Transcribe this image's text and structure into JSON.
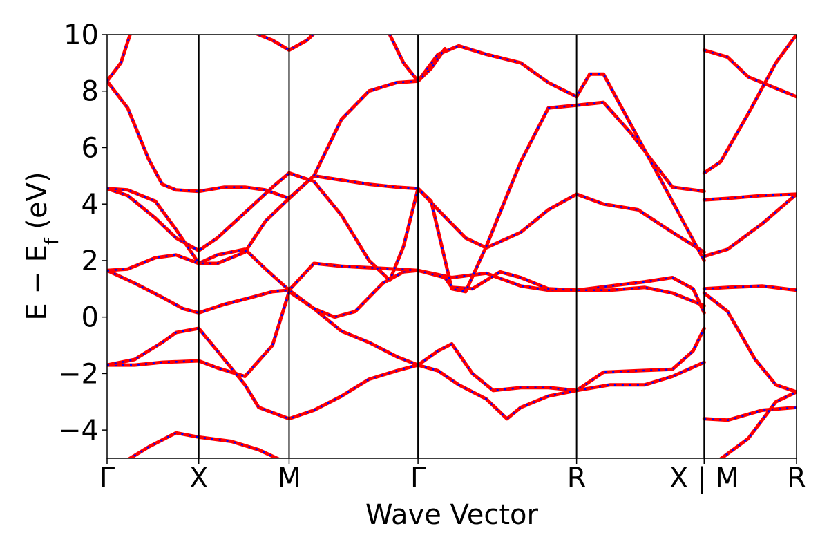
{
  "chart_data": {
    "type": "line",
    "title": "",
    "xlabel": "Wave Vector",
    "ylabel": "E − E_f (eV)",
    "ylim": [
      -5,
      10
    ],
    "yticks": [
      -4,
      -2,
      0,
      2,
      4,
      6,
      8,
      10
    ],
    "ytick_labels": [
      "−4",
      "−2",
      "0",
      "2",
      "4",
      "6",
      "8",
      "10"
    ],
    "x_domain": [
      0,
      1
    ],
    "kpoints": [
      {
        "label": "Γ",
        "x": 0.0
      },
      {
        "label": "X",
        "x": 0.133
      },
      {
        "label": "M",
        "x": 0.264
      },
      {
        "label": "Γ",
        "x": 0.451
      },
      {
        "label": "R",
        "x": 0.681
      },
      {
        "label": "X | M",
        "x": 0.866
      },
      {
        "label": "R",
        "x": 1.0
      }
    ],
    "styles": {
      "red_line": "#ff0000",
      "blue_line": "#0000ff",
      "axis": "#000000"
    },
    "series": [
      {
        "band": 1,
        "points": [
          [
            0.0,
            -5.4
          ],
          [
            0.02,
            -5.2
          ],
          [
            0.06,
            -4.6
          ],
          [
            0.1,
            -4.1
          ],
          [
            0.133,
            -4.25
          ],
          [
            0.18,
            -4.4
          ],
          [
            0.22,
            -4.7
          ],
          [
            0.264,
            -5.2
          ]
        ]
      },
      {
        "band": 2,
        "points": [
          [
            0.0,
            -1.7
          ],
          [
            0.04,
            -1.7
          ],
          [
            0.08,
            -1.6
          ],
          [
            0.133,
            -1.55
          ],
          [
            0.16,
            -1.8
          ],
          [
            0.2,
            -2.1
          ],
          [
            0.24,
            -1.0
          ],
          [
            0.264,
            0.9
          ],
          [
            0.3,
            0.3
          ],
          [
            0.34,
            -0.5
          ],
          [
            0.38,
            -0.9
          ],
          [
            0.42,
            -1.4
          ],
          [
            0.451,
            -1.7
          ],
          [
            0.48,
            -1.2
          ],
          [
            0.5,
            -0.95
          ],
          [
            0.53,
            -2.0
          ],
          [
            0.56,
            -2.6
          ],
          [
            0.6,
            -2.5
          ],
          [
            0.64,
            -2.5
          ],
          [
            0.681,
            -2.6
          ],
          [
            0.72,
            -1.95
          ],
          [
            0.77,
            -1.9
          ],
          [
            0.82,
            -1.85
          ],
          [
            0.85,
            -1.2
          ],
          [
            0.866,
            -0.4
          ]
        ]
      },
      {
        "band": 3,
        "points": [
          [
            0.0,
            -1.7
          ],
          [
            0.04,
            -1.5
          ],
          [
            0.08,
            -0.9
          ],
          [
            0.1,
            -0.55
          ],
          [
            0.133,
            -0.4
          ],
          [
            0.16,
            -1.2
          ],
          [
            0.2,
            -2.4
          ],
          [
            0.22,
            -3.2
          ],
          [
            0.264,
            -3.6
          ],
          [
            0.3,
            -3.3
          ],
          [
            0.34,
            -2.8
          ],
          [
            0.38,
            -2.2
          ],
          [
            0.42,
            -1.9
          ],
          [
            0.451,
            -1.7
          ],
          [
            0.48,
            -1.9
          ],
          [
            0.51,
            -2.4
          ],
          [
            0.55,
            -2.9
          ],
          [
            0.58,
            -3.6
          ],
          [
            0.6,
            -3.2
          ],
          [
            0.64,
            -2.8
          ],
          [
            0.681,
            -2.6
          ],
          [
            0.73,
            -2.4
          ],
          [
            0.78,
            -2.4
          ],
          [
            0.82,
            -2.1
          ],
          [
            0.866,
            -1.6
          ]
        ]
      },
      {
        "band": 4,
        "points": [
          [
            0.0,
            1.65
          ],
          [
            0.03,
            1.7
          ],
          [
            0.07,
            2.1
          ],
          [
            0.1,
            2.2
          ],
          [
            0.133,
            1.9
          ],
          [
            0.16,
            2.2
          ],
          [
            0.2,
            2.4
          ],
          [
            0.23,
            1.7
          ],
          [
            0.264,
            0.95
          ],
          [
            0.3,
            0.3
          ],
          [
            0.33,
            0.0
          ],
          [
            0.36,
            0.2
          ],
          [
            0.4,
            1.2
          ],
          [
            0.43,
            1.6
          ],
          [
            0.451,
            1.65
          ],
          [
            0.5,
            1.4
          ],
          [
            0.55,
            1.55
          ],
          [
            0.6,
            1.1
          ],
          [
            0.64,
            0.95
          ],
          [
            0.681,
            0.95
          ],
          [
            0.73,
            1.1
          ],
          [
            0.78,
            1.25
          ],
          [
            0.82,
            1.4
          ],
          [
            0.85,
            1.0
          ],
          [
            0.866,
            0.15
          ]
        ]
      },
      {
        "band": 5,
        "points": [
          [
            0.0,
            1.65
          ],
          [
            0.04,
            1.2
          ],
          [
            0.08,
            0.7
          ],
          [
            0.11,
            0.3
          ],
          [
            0.133,
            0.15
          ],
          [
            0.17,
            0.45
          ],
          [
            0.21,
            0.7
          ],
          [
            0.24,
            0.9
          ],
          [
            0.264,
            0.95
          ],
          [
            0.3,
            1.9
          ],
          [
            0.34,
            1.8
          ],
          [
            0.38,
            1.75
          ],
          [
            0.42,
            1.7
          ],
          [
            0.451,
            1.65
          ],
          [
            0.49,
            1.4
          ],
          [
            0.5,
            1.05
          ],
          [
            0.53,
            1.0
          ],
          [
            0.57,
            1.6
          ],
          [
            0.6,
            1.4
          ],
          [
            0.64,
            1.0
          ],
          [
            0.681,
            0.95
          ],
          [
            0.73,
            0.95
          ],
          [
            0.78,
            1.05
          ],
          [
            0.82,
            0.85
          ],
          [
            0.866,
            0.4
          ]
        ]
      },
      {
        "band": 6,
        "points": [
          [
            0.0,
            4.55
          ],
          [
            0.03,
            4.3
          ],
          [
            0.07,
            3.5
          ],
          [
            0.1,
            2.8
          ],
          [
            0.133,
            2.35
          ],
          [
            0.16,
            2.8
          ],
          [
            0.2,
            3.7
          ],
          [
            0.24,
            4.6
          ],
          [
            0.264,
            5.1
          ],
          [
            0.3,
            4.8
          ],
          [
            0.34,
            3.6
          ],
          [
            0.38,
            2.0
          ],
          [
            0.41,
            1.3
          ],
          [
            0.43,
            2.5
          ],
          [
            0.451,
            4.55
          ],
          [
            0.48,
            3.8
          ],
          [
            0.52,
            2.8
          ],
          [
            0.55,
            2.45
          ],
          [
            0.6,
            3.0
          ],
          [
            0.64,
            3.8
          ],
          [
            0.681,
            4.35
          ],
          [
            0.72,
            4.0
          ],
          [
            0.77,
            3.8
          ],
          [
            0.82,
            3.0
          ],
          [
            0.866,
            2.3
          ]
        ]
      },
      {
        "band": 7,
        "points": [
          [
            0.0,
            4.55
          ],
          [
            0.03,
            4.5
          ],
          [
            0.07,
            4.1
          ],
          [
            0.1,
            3.1
          ],
          [
            0.133,
            1.9
          ],
          [
            0.16,
            1.9
          ],
          [
            0.2,
            2.3
          ],
          [
            0.23,
            3.4
          ],
          [
            0.264,
            4.2
          ],
          [
            0.3,
            5.0
          ],
          [
            0.34,
            4.85
          ],
          [
            0.38,
            4.7
          ],
          [
            0.42,
            4.6
          ],
          [
            0.451,
            4.55
          ],
          [
            0.47,
            4.1
          ],
          [
            0.5,
            1.0
          ],
          [
            0.52,
            0.9
          ],
          [
            0.55,
            2.5
          ],
          [
            0.6,
            5.5
          ],
          [
            0.64,
            7.4
          ],
          [
            0.681,
            7.5
          ],
          [
            0.72,
            7.6
          ],
          [
            0.76,
            6.5
          ],
          [
            0.82,
            4.6
          ],
          [
            0.866,
            4.45
          ]
        ]
      },
      {
        "band": 8,
        "points": [
          [
            0.0,
            8.35
          ],
          [
            0.03,
            7.4
          ],
          [
            0.06,
            5.6
          ],
          [
            0.08,
            4.7
          ],
          [
            0.1,
            4.5
          ],
          [
            0.133,
            4.45
          ],
          [
            0.17,
            4.6
          ],
          [
            0.2,
            4.6
          ],
          [
            0.23,
            4.5
          ],
          [
            0.264,
            4.2
          ],
          [
            0.3,
            5.0
          ],
          [
            0.34,
            7.0
          ],
          [
            0.38,
            8.0
          ],
          [
            0.42,
            8.3
          ],
          [
            0.451,
            8.35
          ],
          [
            0.48,
            9.3
          ],
          [
            0.51,
            9.6
          ],
          [
            0.55,
            9.3
          ],
          [
            0.6,
            9.0
          ],
          [
            0.64,
            8.3
          ],
          [
            0.681,
            7.8
          ],
          [
            0.7,
            8.6
          ],
          [
            0.72,
            8.6
          ],
          [
            0.76,
            6.8
          ],
          [
            0.8,
            5.0
          ],
          [
            0.866,
            2.0
          ]
        ]
      },
      {
        "band": 9,
        "points": [
          [
            0.0,
            8.35
          ],
          [
            0.02,
            9.0
          ],
          [
            0.04,
            10.5
          ]
        ]
      },
      {
        "band": 10,
        "points": [
          [
            0.2,
            10.2
          ],
          [
            0.24,
            9.8
          ],
          [
            0.264,
            9.45
          ],
          [
            0.29,
            9.8
          ],
          [
            0.32,
            10.5
          ]
        ]
      },
      {
        "band": 11,
        "points": [
          [
            0.4,
            10.5
          ],
          [
            0.43,
            9.0
          ],
          [
            0.451,
            8.35
          ],
          [
            0.47,
            8.8
          ],
          [
            0.49,
            9.5
          ]
        ]
      },
      {
        "band": 12,
        "points": [
          [
            0.866,
            9.45
          ],
          [
            0.9,
            9.2
          ],
          [
            0.93,
            8.5
          ],
          [
            0.96,
            8.2
          ],
          [
            1.0,
            7.8
          ]
        ]
      },
      {
        "band": 13,
        "points": [
          [
            0.866,
            5.1
          ],
          [
            0.89,
            5.5
          ],
          [
            0.93,
            7.2
          ],
          [
            0.97,
            9.0
          ],
          [
            1.0,
            10.0
          ]
        ]
      },
      {
        "band": 14,
        "points": [
          [
            0.866,
            4.15
          ],
          [
            0.9,
            4.2
          ],
          [
            0.95,
            4.3
          ],
          [
            1.0,
            4.35
          ]
        ]
      },
      {
        "band": 15,
        "points": [
          [
            0.866,
            2.15
          ],
          [
            0.9,
            2.4
          ],
          [
            0.95,
            3.3
          ],
          [
            1.0,
            4.35
          ]
        ]
      },
      {
        "band": 16,
        "points": [
          [
            0.866,
            1.0
          ],
          [
            0.9,
            1.05
          ],
          [
            0.95,
            1.1
          ],
          [
            1.0,
            0.95
          ]
        ]
      },
      {
        "band": 17,
        "points": [
          [
            0.866,
            0.85
          ],
          [
            0.9,
            0.2
          ],
          [
            0.94,
            -1.5
          ],
          [
            0.97,
            -2.4
          ],
          [
            1.0,
            -2.65
          ]
        ]
      },
      {
        "band": 18,
        "points": [
          [
            0.866,
            -3.6
          ],
          [
            0.9,
            -3.65
          ],
          [
            0.95,
            -3.3
          ],
          [
            1.0,
            -3.2
          ]
        ]
      },
      {
        "band": 19,
        "points": [
          [
            0.88,
            -5.2
          ],
          [
            0.93,
            -4.3
          ],
          [
            0.97,
            -3.0
          ],
          [
            1.0,
            -2.65
          ]
        ]
      }
    ]
  }
}
